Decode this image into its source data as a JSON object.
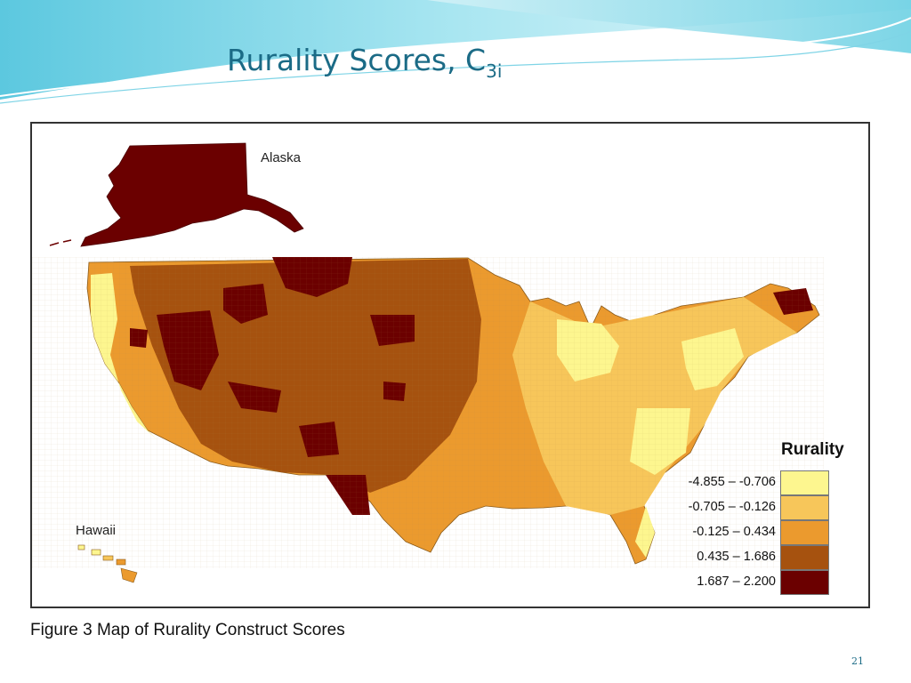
{
  "slide": {
    "title": "Rurality Scores, C",
    "title_subscript": "3i",
    "page_number": "21"
  },
  "map": {
    "labels": {
      "alaska": "Alaska",
      "hawaii": "Hawaii"
    },
    "caption": "Figure 3 Map of Rurality Construct Scores"
  },
  "legend": {
    "title": "Rurality",
    "classes": [
      {
        "range": "-4.855 – -0.706",
        "color": "#fdf68f"
      },
      {
        "range": "-0.705 – -0.126",
        "color": "#f7c65a"
      },
      {
        "range": "-0.125 –  0.434",
        "color": "#eb9a2e"
      },
      {
        "range": "0.435 –  1.686",
        "color": "#a6520f"
      },
      {
        "range": "1.687 –  2.200",
        "color": "#6b0000"
      }
    ]
  },
  "colors": {
    "title": "#1b6b86",
    "header_teal": "#6fd0e4",
    "border": "#333333"
  }
}
